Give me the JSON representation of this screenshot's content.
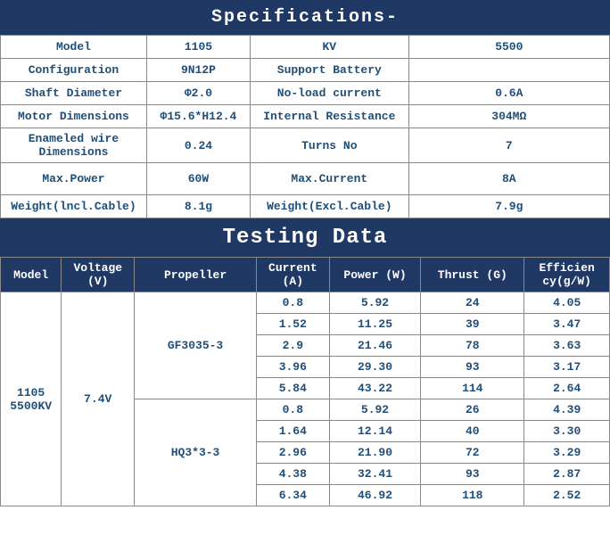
{
  "specifications": {
    "title": "Specifications-",
    "rows": [
      {
        "c1": "Model",
        "c2": "1105",
        "c3": "KV",
        "c4": "5500"
      },
      {
        "c1": "Configuration",
        "c2": "9N12P",
        "c3": "Support Battery",
        "c4": ""
      },
      {
        "c1": "Shaft Diameter",
        "c2": "Φ2.0",
        "c3": "No-load current",
        "c4": "0.6A"
      },
      {
        "c1": "Motor Dimensions",
        "c2": "Φ15.6*H12.4",
        "c3": "Internal Resistance",
        "c4": "304MΩ"
      },
      {
        "c1": "Enameled wire Dimensions",
        "c2": "0.24",
        "c3": "Turns No",
        "c4": "7",
        "tall": true
      },
      {
        "c1": "Max.Power",
        "c2": "60W",
        "c3": "Max.Current",
        "c4": "8A",
        "tall": true
      },
      {
        "c1": "Weight(lncl.Cable)",
        "c2": "8.1g",
        "c3": "Weight(Excl.Cable)",
        "c4": "7.9g"
      }
    ]
  },
  "testing": {
    "title": "Testing Data",
    "headers": {
      "model": "Model",
      "voltage": "Voltage (V)",
      "propeller": "Propeller",
      "current": "Current (A)",
      "power": "Power  (W)",
      "thrust": "Thrust (G)",
      "efficiency": "Efficien cy(g/W)"
    },
    "model": "1105 5500KV",
    "voltage": "7.4V",
    "groups": [
      {
        "propeller": "GF3035-3",
        "rows": [
          {
            "current": "0.8",
            "power": "5.92",
            "thrust": "24",
            "eff": "4.05"
          },
          {
            "current": "1.52",
            "power": "11.25",
            "thrust": "39",
            "eff": "3.47"
          },
          {
            "current": "2.9",
            "power": "21.46",
            "thrust": "78",
            "eff": "3.63"
          },
          {
            "current": "3.96",
            "power": "29.30",
            "thrust": "93",
            "eff": "3.17"
          },
          {
            "current": "5.84",
            "power": "43.22",
            "thrust": "114",
            "eff": "2.64"
          }
        ]
      },
      {
        "propeller": "HQ3*3-3",
        "rows": [
          {
            "current": "0.8",
            "power": "5.92",
            "thrust": "26",
            "eff": "4.39"
          },
          {
            "current": "1.64",
            "power": "12.14",
            "thrust": "40",
            "eff": "3.30"
          },
          {
            "current": "2.96",
            "power": "21.90",
            "thrust": "72",
            "eff": "3.29"
          },
          {
            "current": "4.38",
            "power": "32.41",
            "thrust": "93",
            "eff": "2.87"
          },
          {
            "current": "6.34",
            "power": "46.92",
            "thrust": "118",
            "eff": "2.52"
          }
        ]
      }
    ]
  },
  "colors": {
    "header_bg": "#1f3864",
    "header_fg": "#ffffff",
    "text": "#1f4e79",
    "border": "#888888",
    "cell_bg": "#ffffff"
  }
}
